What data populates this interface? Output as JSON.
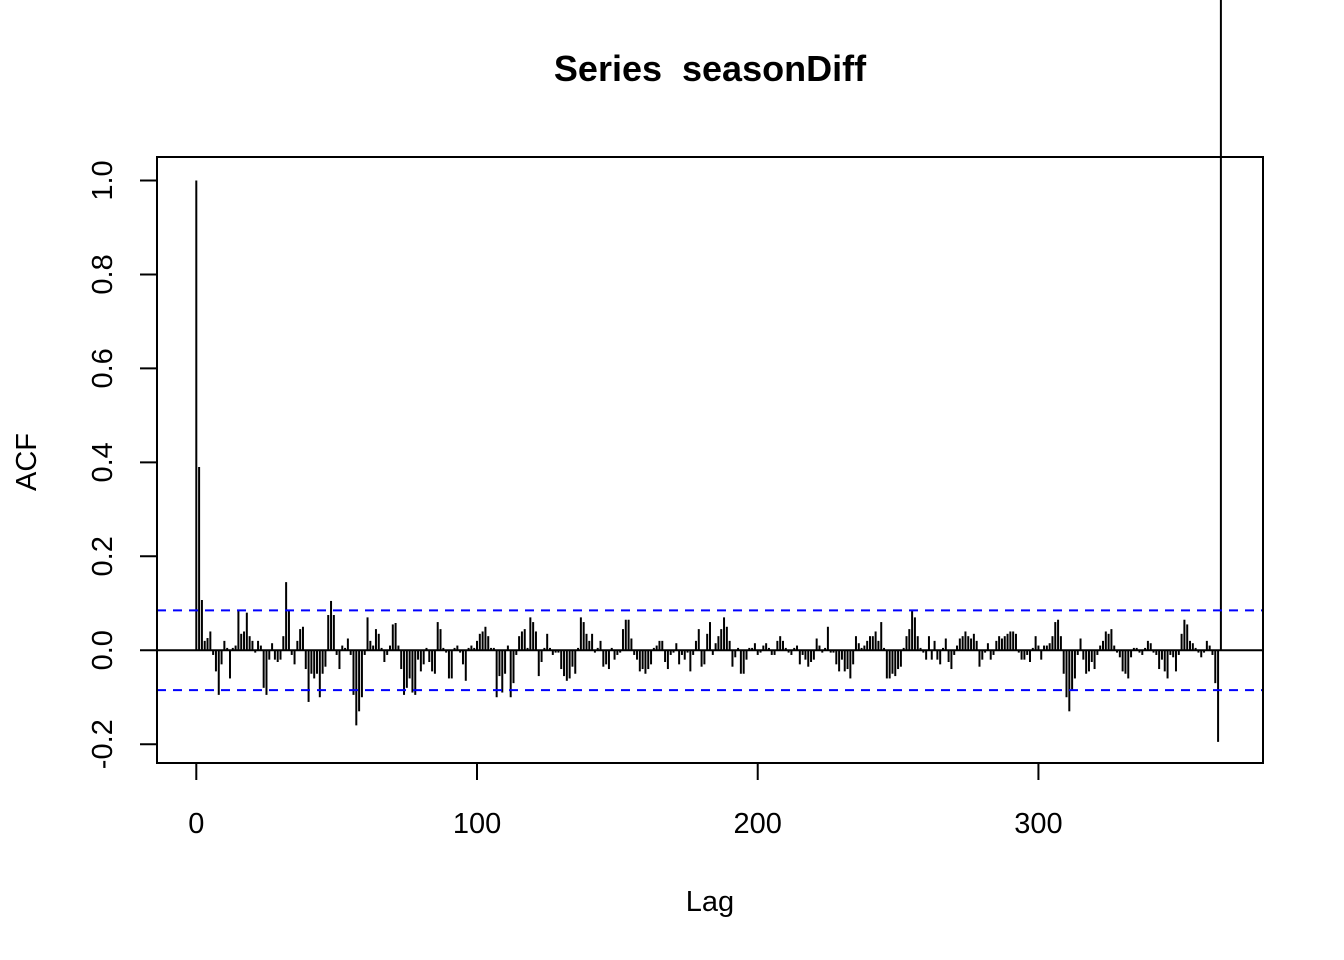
{
  "chart_data": {
    "type": "bar",
    "title": "Series  seasonDiff",
    "xlabel": "Lag",
    "ylabel": "ACF",
    "xlim": [
      -14,
      380
    ],
    "ylim": [
      -0.24,
      1.05
    ],
    "x_ticks": [
      0,
      100,
      200,
      300
    ],
    "x_tick_labels": [
      "0",
      "100",
      "200",
      "300"
    ],
    "y_ticks": [
      -0.2,
      0.0,
      0.2,
      0.4,
      0.6,
      0.8,
      1.0
    ],
    "y_tick_labels": [
      "-0.2",
      "0.0",
      "0.2",
      "0.4",
      "0.6",
      "0.8",
      "1.0"
    ],
    "confidence_bound": 0.085,
    "confidence_color": "#0000FF",
    "bar_color": "#000000",
    "grid": false,
    "legend": "none",
    "lags": [
      0,
      1,
      2,
      3,
      4,
      5,
      6,
      7,
      8,
      9,
      10,
      11,
      12,
      13,
      14,
      15,
      16,
      17,
      18,
      19,
      20,
      21,
      22,
      23,
      24,
      25,
      26,
      27,
      28,
      29,
      30,
      31,
      32,
      33,
      34,
      35,
      36,
      37,
      38,
      39,
      40,
      41,
      42,
      43,
      44,
      45,
      46,
      47,
      48,
      49,
      50,
      51,
      52,
      53,
      54,
      55,
      56,
      57,
      58,
      59,
      60,
      61,
      62,
      63,
      64,
      65,
      66,
      67,
      68,
      69,
      70,
      71,
      72,
      73,
      74,
      75,
      76,
      77,
      78,
      79,
      80,
      81,
      82,
      83,
      84,
      85,
      86,
      87,
      88,
      89,
      90,
      91,
      92,
      93,
      94,
      95,
      96,
      97,
      98,
      99,
      100,
      101,
      102,
      103,
      104,
      105,
      106,
      107,
      108,
      109,
      110,
      111,
      112,
      113,
      114,
      115,
      116,
      117,
      118,
      119,
      120,
      121,
      122,
      123,
      124,
      125,
      126,
      127,
      128,
      129,
      130,
      131,
      132,
      133,
      134,
      135,
      136,
      137,
      138,
      139,
      140,
      141,
      142,
      143,
      144,
      145,
      146,
      147,
      148,
      149,
      150,
      151,
      152,
      153,
      154,
      155,
      156,
      157,
      158,
      159,
      160,
      161,
      162,
      163,
      164,
      165,
      166,
      167,
      168,
      169,
      170,
      171,
      172,
      173,
      174,
      175,
      176,
      177,
      178,
      179,
      180,
      181,
      182,
      183,
      184,
      185,
      186,
      187,
      188,
      189,
      190,
      191,
      192,
      193,
      194,
      195,
      196,
      197,
      198,
      199,
      200,
      201,
      202,
      203,
      204,
      205,
      206,
      207,
      208,
      209,
      210,
      211,
      212,
      213,
      214,
      215,
      216,
      217,
      218,
      219,
      220,
      221,
      222,
      223,
      224,
      225,
      226,
      227,
      228,
      229,
      230,
      231,
      232,
      233,
      234,
      235,
      236,
      237,
      238,
      239,
      240,
      241,
      242,
      243,
      244,
      245,
      246,
      247,
      248,
      249,
      250,
      251,
      252,
      253,
      254,
      255,
      256,
      257,
      258,
      259,
      260,
      261,
      262,
      263,
      264,
      265,
      266,
      267,
      268,
      269,
      270,
      271,
      272,
      273,
      274,
      275,
      276,
      277,
      278,
      279,
      280,
      281,
      282,
      283,
      284,
      285,
      286,
      287,
      288,
      289,
      290,
      291,
      292,
      293,
      294,
      295,
      296,
      297,
      298,
      299,
      300,
      301,
      302,
      303,
      304,
      305,
      306,
      307,
      308,
      309,
      310,
      311,
      312,
      313,
      314,
      315,
      316,
      317,
      318,
      319,
      320,
      321,
      322,
      323,
      324,
      325,
      326,
      327,
      328,
      329,
      330,
      331,
      332,
      333,
      334,
      335,
      336,
      337,
      338,
      339,
      340,
      341,
      342,
      343,
      344,
      345,
      346,
      347,
      348,
      349,
      350,
      351,
      352,
      353,
      354,
      355,
      356,
      357,
      358,
      359,
      360,
      361,
      362,
      363,
      364,
      365
    ],
    "values": [
      1.0,
      0.39,
      0.107,
      0.02,
      0.026,
      0.04,
      -0.01,
      -0.045,
      -0.095,
      -0.03,
      0.02,
      0.005,
      -0.06,
      0.005,
      0.01,
      0.085,
      0.035,
      0.04,
      0.08,
      0.03,
      0.02,
      -0.005,
      0.02,
      0.01,
      -0.08,
      -0.095,
      -0.02,
      0.015,
      -0.02,
      -0.025,
      -0.02,
      0.03,
      0.145,
      0.085,
      -0.01,
      -0.03,
      0.02,
      0.045,
      0.05,
      -0.04,
      -0.11,
      -0.05,
      -0.06,
      -0.05,
      -0.1,
      -0.05,
      -0.035,
      0.075,
      0.105,
      0.075,
      -0.01,
      -0.04,
      0.01,
      0.005,
      0.025,
      -0.01,
      -0.095,
      -0.16,
      -0.13,
      -0.1,
      -0.01,
      0.07,
      0.02,
      0.01,
      0.045,
      0.035,
      0.005,
      -0.025,
      -0.01,
      0.01,
      0.055,
      0.058,
      0.01,
      -0.04,
      -0.095,
      -0.08,
      -0.06,
      -0.09,
      -0.095,
      -0.02,
      -0.045,
      -0.03,
      0.005,
      -0.025,
      -0.045,
      -0.05,
      0.06,
      0.045,
      0.005,
      -0.005,
      -0.06,
      -0.06,
      0.005,
      0.01,
      -0.005,
      -0.03,
      -0.065,
      0.005,
      0.01,
      0.005,
      0.02,
      0.035,
      0.04,
      0.05,
      0.03,
      0.005,
      0.005,
      -0.1,
      -0.055,
      -0.09,
      -0.05,
      0.01,
      -0.1,
      -0.07,
      -0.01,
      0.03,
      0.04,
      0.045,
      0.005,
      0.07,
      0.06,
      0.04,
      -0.055,
      -0.025,
      0.005,
      0.035,
      0.005,
      -0.01,
      -0.005,
      -0.005,
      -0.04,
      -0.055,
      -0.065,
      -0.06,
      -0.035,
      -0.05,
      0.005,
      0.07,
      0.06,
      0.035,
      0.02,
      0.035,
      -0.005,
      0.005,
      0.02,
      -0.035,
      -0.03,
      -0.04,
      0.005,
      -0.02,
      -0.01,
      -0.005,
      0.045,
      0.065,
      0.065,
      0.025,
      -0.01,
      -0.02,
      -0.045,
      -0.04,
      -0.05,
      -0.04,
      -0.03,
      0.005,
      0.01,
      0.02,
      0.02,
      -0.025,
      -0.04,
      -0.01,
      -0.005,
      0.015,
      -0.03,
      -0.01,
      -0.02,
      -0.005,
      -0.045,
      -0.01,
      0.02,
      0.045,
      -0.035,
      -0.03,
      0.035,
      0.06,
      -0.01,
      0.015,
      0.03,
      0.045,
      0.07,
      0.05,
      0.02,
      -0.035,
      -0.015,
      0.005,
      -0.05,
      -0.05,
      -0.02,
      0.005,
      0.005,
      0.015,
      -0.01,
      -0.005,
      0.01,
      0.015,
      0.005,
      -0.01,
      -0.01,
      0.02,
      0.03,
      0.02,
      0.005,
      -0.005,
      -0.01,
      0.005,
      0.01,
      -0.03,
      -0.01,
      -0.02,
      -0.035,
      -0.025,
      -0.02,
      0.025,
      0.01,
      -0.005,
      0.005,
      0.05,
      -0.005,
      -0.005,
      -0.03,
      -0.045,
      -0.02,
      -0.045,
      -0.04,
      -0.06,
      -0.03,
      0.03,
      0.015,
      0.005,
      0.01,
      0.02,
      0.03,
      0.03,
      0.04,
      0.02,
      0.06,
      0.005,
      -0.06,
      -0.06,
      -0.05,
      -0.055,
      -0.04,
      -0.035,
      0.005,
      0.03,
      0.045,
      0.085,
      0.07,
      0.03,
      0.005,
      -0.005,
      -0.02,
      0.03,
      -0.02,
      0.02,
      -0.02,
      -0.03,
      0.005,
      0.025,
      -0.025,
      -0.04,
      -0.01,
      0.01,
      0.025,
      0.03,
      0.04,
      0.03,
      0.025,
      0.035,
      0.02,
      -0.035,
      -0.02,
      -0.005,
      0.015,
      -0.02,
      -0.01,
      0.02,
      0.03,
      0.025,
      0.03,
      0.035,
      0.04,
      0.04,
      0.035,
      -0.005,
      -0.02,
      -0.02,
      -0.01,
      -0.025,
      0.005,
      0.03,
      0.01,
      -0.02,
      0.01,
      0.01,
      0.015,
      0.03,
      0.06,
      0.065,
      0.03,
      -0.05,
      -0.1,
      -0.13,
      -0.085,
      -0.06,
      -0.01,
      0.025,
      -0.02,
      -0.05,
      -0.045,
      -0.025,
      -0.04,
      -0.01,
      0.01,
      0.02,
      0.04,
      0.035,
      0.045,
      0.01,
      -0.005,
      -0.015,
      -0.045,
      -0.05,
      -0.06,
      -0.015,
      0.005,
      0.005,
      -0.005,
      -0.01,
      0.005,
      0.02,
      0.015,
      -0.005,
      -0.01,
      -0.04,
      -0.02,
      -0.045,
      -0.06,
      -0.01,
      -0.015,
      -0.045,
      -0.01,
      0.035,
      0.065,
      0.055,
      0.02,
      0.015,
      0.005,
      -0.005,
      -0.015,
      -0.005,
      0.02,
      0.01,
      -0.01,
      -0.07,
      -0.195
    ]
  }
}
